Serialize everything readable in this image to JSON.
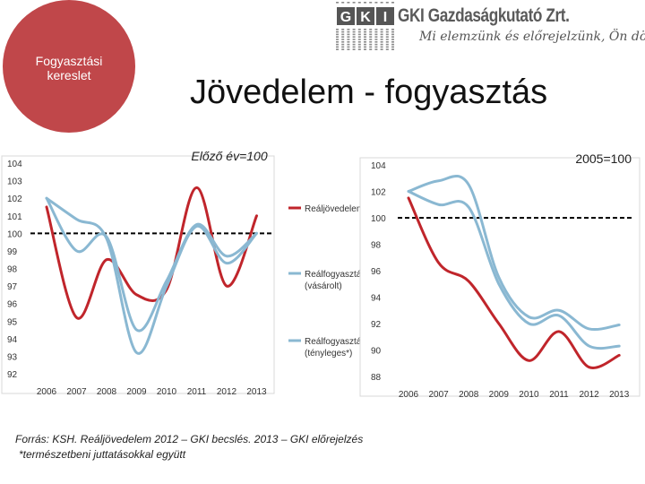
{
  "badge": {
    "line1": "Fogyasztási",
    "line2": "kereslet"
  },
  "logo": {
    "letters": [
      "G",
      "K",
      "I"
    ],
    "company": "GKI Gazdaságkutató Zrt.",
    "slogan": "Mi elemzünk és előrejelzünk, Ön dönt."
  },
  "page_title": "Jövedelem - fogyasztás",
  "colors": {
    "red": "#c0252b",
    "blue": "#8ab8d2",
    "ref": "#000000",
    "badge": "#c0474a"
  },
  "chart_data": [
    {
      "type": "line",
      "title": "Előző év=100",
      "categories": [
        "2006",
        "2007",
        "2008",
        "2009",
        "2010",
        "2011",
        "2012",
        "2013"
      ],
      "ylim": [
        92,
        104
      ],
      "yticks": [
        92,
        93,
        94,
        95,
        96,
        97,
        98,
        99,
        100,
        101,
        102,
        103,
        104
      ],
      "reference": 100,
      "series": [
        {
          "name": "Reáljövedelem",
          "values": [
            101.5,
            95.2,
            98.5,
            96.5,
            96.8,
            102.6,
            97.0,
            101.0
          ]
        },
        {
          "name": "Reálfogyasztás (vásárolt)",
          "values": [
            102.0,
            100.8,
            99.7,
            93.2,
            97.0,
            100.4,
            98.3,
            100.0
          ]
        },
        {
          "name": "Reálfogyasztás (tényleges*)",
          "values": [
            102.0,
            99.0,
            99.8,
            94.5,
            97.3,
            100.5,
            98.7,
            100.0
          ]
        }
      ],
      "legend": [
        {
          "line1": "Reáljövedelem",
          "line2": ""
        },
        {
          "line1": "Reálfogyasztás",
          "line2": "(vásárolt)"
        },
        {
          "line1": "Reálfogyasztás",
          "line2": "(tényleges*)"
        }
      ]
    },
    {
      "type": "line",
      "title": "2005=100",
      "categories": [
        "2006",
        "2007",
        "2008",
        "2009",
        "2010",
        "2011",
        "2012",
        "2013"
      ],
      "ylim": [
        88,
        104
      ],
      "yticks": [
        88,
        90,
        92,
        94,
        96,
        98,
        100,
        102,
        104
      ],
      "reference": 100,
      "series": [
        {
          "name": "Reáljövedelem",
          "values": [
            101.5,
            96.6,
            95.2,
            92.0,
            89.2,
            91.4,
            88.7,
            89.6
          ]
        },
        {
          "name": "Reálfogyasztás (vásárolt)",
          "values": [
            102.0,
            102.8,
            102.5,
            95.5,
            92.5,
            93.0,
            91.6,
            91.9
          ]
        },
        {
          "name": "Reálfogyasztás (tényleges*)",
          "values": [
            102.0,
            101.0,
            100.8,
            95.0,
            92.0,
            92.6,
            90.3,
            90.3
          ]
        }
      ]
    }
  ],
  "source": {
    "line1": "Forrás: KSH. Reáljövedelem 2012 – GKI becslés. 2013 – GKI előrejelzés",
    "line2": "*természetbeni juttatásokkal együtt"
  }
}
